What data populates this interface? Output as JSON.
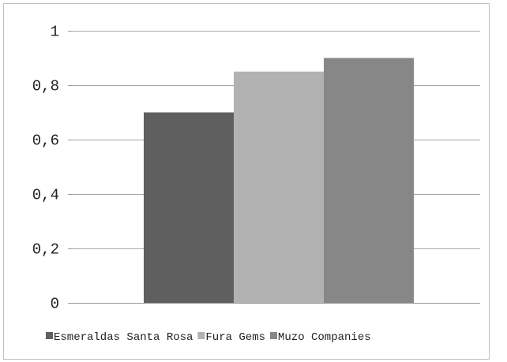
{
  "chart_data": {
    "type": "bar",
    "title": "",
    "xlabel": "",
    "ylabel": "",
    "ylim": [
      0,
      1
    ],
    "y_ticks": [
      {
        "value": 0,
        "label": "0"
      },
      {
        "value": 0.2,
        "label": "0,2"
      },
      {
        "value": 0.4,
        "label": "0,4"
      },
      {
        "value": 0.6,
        "label": "0,6"
      },
      {
        "value": 0.8,
        "label": "0,8"
      },
      {
        "value": 1,
        "label": "1"
      }
    ],
    "grid": true,
    "legend_position": "bottom",
    "series": [
      {
        "name": "Esmeraldas Santa Rosa",
        "values": [
          0.7
        ],
        "color": "#5f5f5f"
      },
      {
        "name": "Fura Gems",
        "values": [
          0.85
        ],
        "color": "#b2b2b2"
      },
      {
        "name": "Muzo Companies",
        "values": [
          0.9
        ],
        "color": "#878787"
      }
    ]
  }
}
